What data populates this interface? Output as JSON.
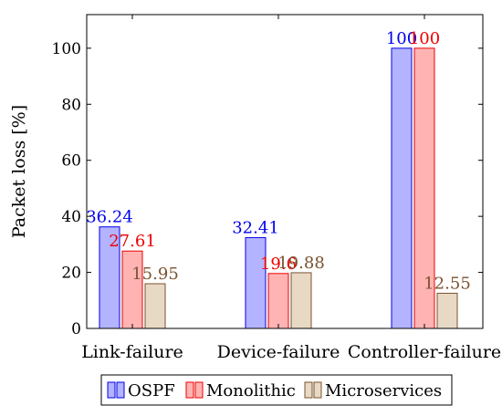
{
  "chart_data": {
    "type": "bar",
    "ylabel": "Packet loss [%]",
    "xlabel": "",
    "categories": [
      "Link-failure",
      "Device-failure",
      "Controller-failure"
    ],
    "ylim": [
      0,
      112
    ],
    "yticks": [
      0,
      20,
      40,
      60,
      80,
      100
    ],
    "grid": false,
    "legend_position": "bottom",
    "series": [
      {
        "name": "OSPF",
        "values": [
          36.24,
          32.41,
          100
        ],
        "labels": [
          "36.24",
          "32.41",
          "100"
        ],
        "fill": "#b3b3ff",
        "stroke": "#0000ee",
        "text_color": "#0000ee"
      },
      {
        "name": "Monolithic",
        "values": [
          27.61,
          19.6,
          100
        ],
        "labels": [
          "27.61",
          "19.6",
          "100"
        ],
        "fill": "#ffb3b3",
        "stroke": "#ee0000",
        "text_color": "#ee0000"
      },
      {
        "name": "Microservices",
        "values": [
          15.95,
          19.88,
          12.55
        ],
        "labels": [
          "15.95",
          "19.88",
          "12.55"
        ],
        "fill": "#e8d9c5",
        "stroke": "#7a5230",
        "text_color": "#7a5230"
      }
    ]
  }
}
